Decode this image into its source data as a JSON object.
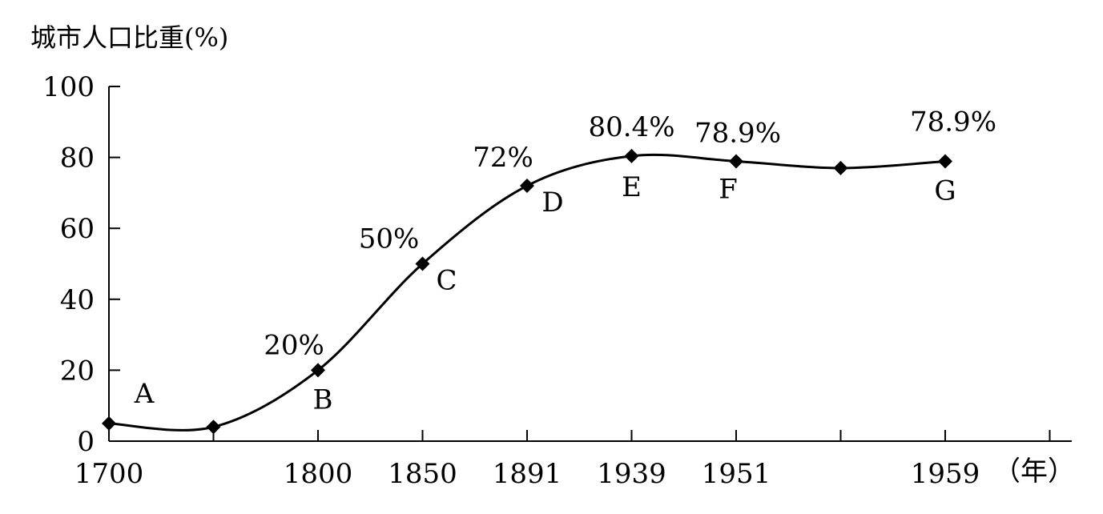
{
  "chart_data": {
    "type": "line",
    "ylabel": "城市人口比重(%)",
    "xunit": "（年）",
    "ylim": [
      0,
      100
    ],
    "yticks": [
      0,
      20,
      40,
      60,
      80,
      100
    ],
    "x_tick_labels": [
      "1700",
      "",
      "1800",
      "1850",
      "1891",
      "1939",
      "1951",
      "",
      "1959",
      ""
    ],
    "grid": false,
    "legend": "none",
    "smooth": true,
    "points": [
      {
        "letter": "A",
        "year_label": "1700",
        "value": 5,
        "value_label": ""
      },
      {
        "letter": "",
        "year_label": "",
        "value": 4,
        "value_label": ""
      },
      {
        "letter": "B",
        "year_label": "1800",
        "value": 20,
        "value_label": "20%"
      },
      {
        "letter": "C",
        "year_label": "1850",
        "value": 50,
        "value_label": "50%"
      },
      {
        "letter": "D",
        "year_label": "1891",
        "value": 72,
        "value_label": "72%"
      },
      {
        "letter": "E",
        "year_label": "1939",
        "value": 80.4,
        "value_label": "80.4%"
      },
      {
        "letter": "F",
        "year_label": "1951",
        "value": 78.9,
        "value_label": "78.9%"
      },
      {
        "letter": "",
        "year_label": "",
        "value": 77,
        "value_label": ""
      },
      {
        "letter": "G",
        "year_label": "1959",
        "value": 78.9,
        "value_label": "78.9%"
      }
    ],
    "line_color": "#000000",
    "marker": "diamond"
  }
}
